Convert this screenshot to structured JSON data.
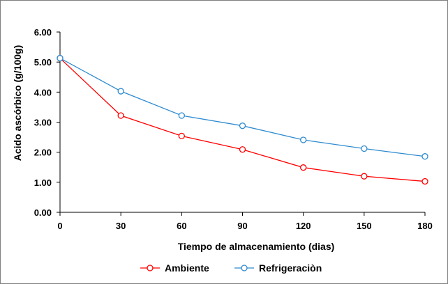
{
  "chart_data": {
    "type": "line",
    "x": [
      0,
      30,
      60,
      90,
      120,
      150,
      180
    ],
    "xlabel": "Tiempo de almacenamiento (dias)",
    "ylabel": "Acido ascórbico (g/100g)",
    "xlim": [
      0,
      180
    ],
    "ylim": [
      0,
      6
    ],
    "x_ticks": [
      "0",
      "30",
      "60",
      "90",
      "120",
      "150",
      "180"
    ],
    "y_ticks": [
      "0.00",
      "1.00",
      "2.00",
      "3.00",
      "4.00",
      "5.00",
      "6.00"
    ],
    "grid": false,
    "legend_position": "bottom",
    "series": [
      {
        "name": "Ambiente",
        "color": "#ff0000",
        "values": [
          5.13,
          3.22,
          2.54,
          2.09,
          1.49,
          1.2,
          1.03
        ]
      },
      {
        "name": "Refrigeraciòn",
        "color": "#2e8bd0",
        "values": [
          5.13,
          4.03,
          3.22,
          2.88,
          2.41,
          2.12,
          1.86
        ]
      }
    ]
  }
}
